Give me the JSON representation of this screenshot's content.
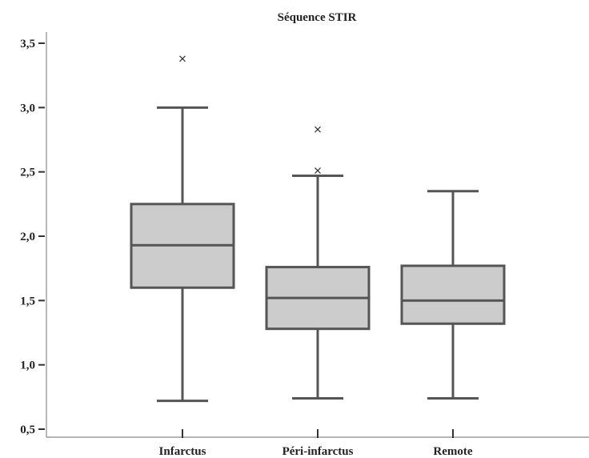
{
  "chart_data": {
    "type": "box",
    "title": "Séquence STIR",
    "xlabel": "",
    "ylabel": "",
    "ylim": [
      0.5,
      3.5
    ],
    "yticks": [
      0.5,
      1.0,
      1.5,
      2.0,
      2.5,
      3.0,
      3.5
    ],
    "ytick_labels": [
      "0,5",
      "1,0",
      "1,5",
      "2,0",
      "2,5",
      "3,0",
      "3,5"
    ],
    "grid": false,
    "categories": [
      "Infarctus",
      "Péri-infarctus",
      "Remote"
    ],
    "boxes": [
      {
        "category": "Infarctus",
        "whisker_low": 0.72,
        "q1": 1.6,
        "median": 1.93,
        "q3": 2.25,
        "whisker_high": 3.0,
        "outliers": [
          3.38
        ]
      },
      {
        "category": "Péri-infarctus",
        "whisker_low": 0.74,
        "q1": 1.28,
        "median": 1.52,
        "q3": 1.76,
        "whisker_high": 2.47,
        "outliers": [
          2.51,
          2.83
        ]
      },
      {
        "category": "Remote",
        "whisker_low": 0.74,
        "q1": 1.32,
        "median": 1.5,
        "q3": 1.77,
        "whisker_high": 2.35,
        "outliers": []
      }
    ],
    "colors": {
      "box_fill": "#cccccc",
      "stroke": "#555555",
      "axis": "#888888",
      "outlier": "#333333"
    }
  }
}
